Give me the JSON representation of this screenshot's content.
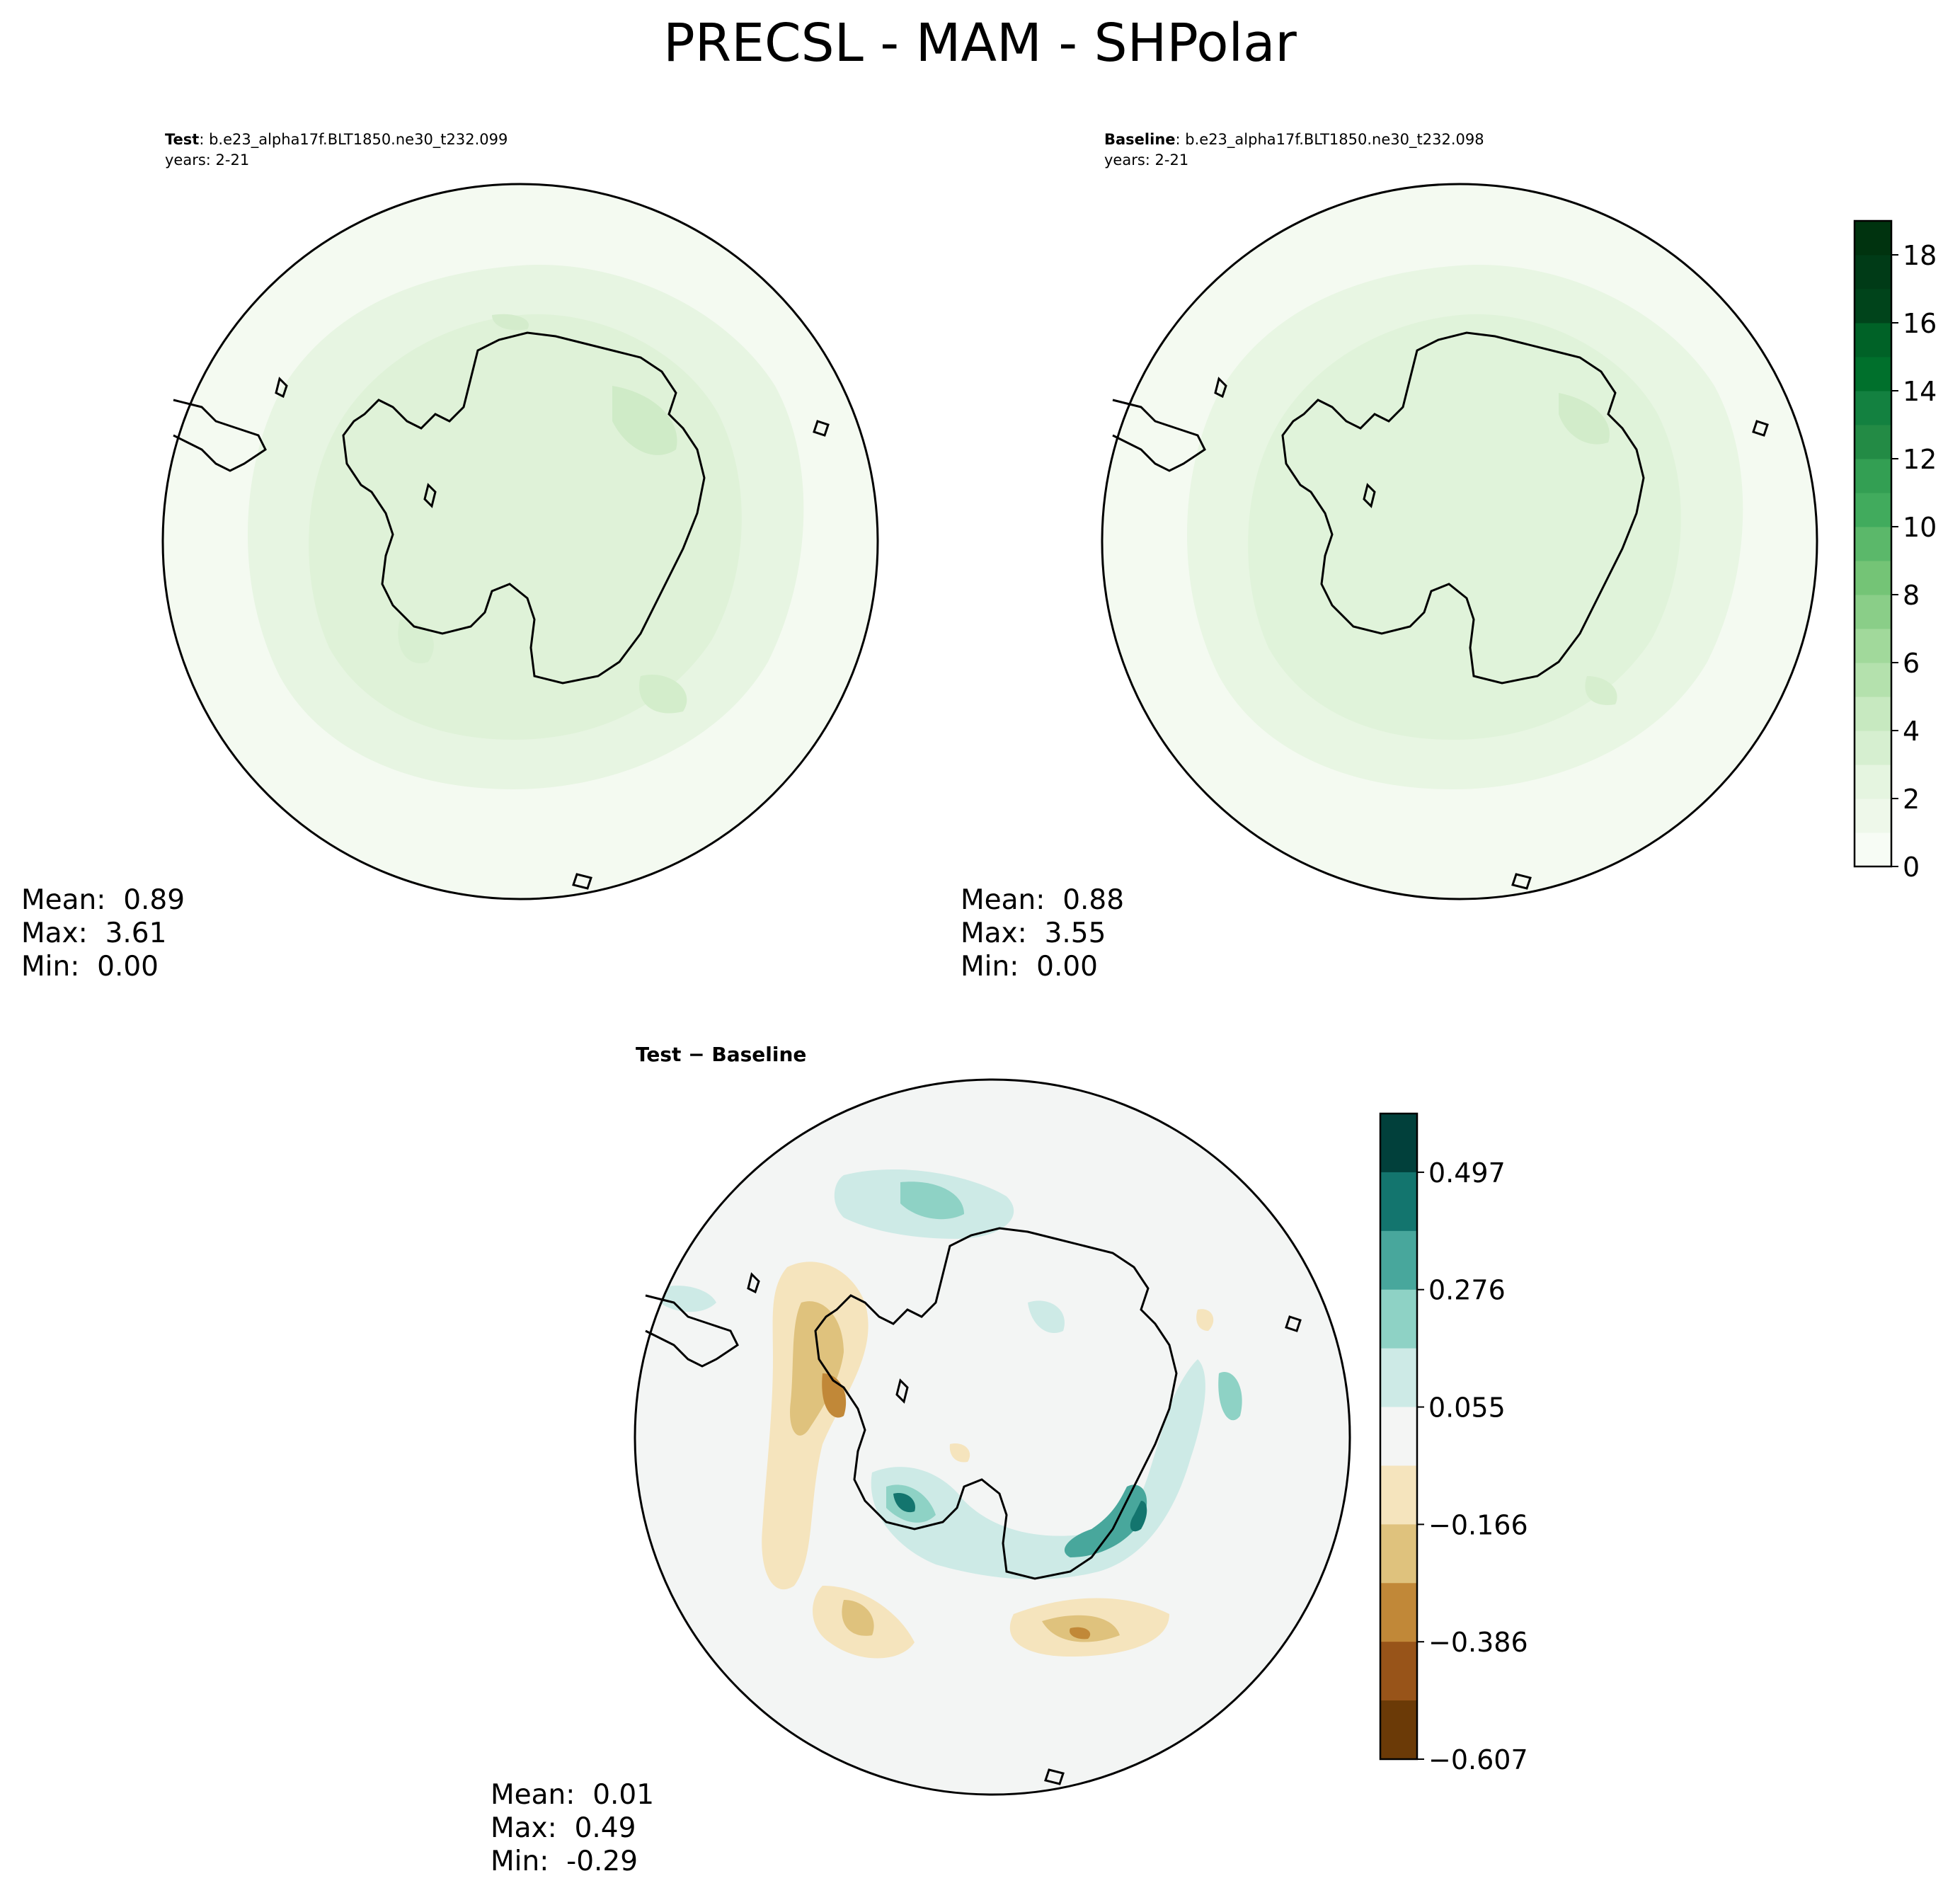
{
  "figure": {
    "title": "PRECSL - MAM - SHPolar"
  },
  "panels": {
    "test": {
      "label": "Test",
      "case": ": b.e23_alpha17f.BLT1850.ne30_t232.099",
      "years": "years: 2-21",
      "stats": {
        "mean_label": "Mean:",
        "mean": "0.89",
        "max_label": "Max:",
        "max": "3.61",
        "min_label": "Min:",
        "min": "0.00"
      }
    },
    "baseline": {
      "label": "Baseline",
      "case": ": b.e23_alpha17f.BLT1850.ne30_t232.098",
      "years": "years: 2-21",
      "stats": {
        "mean_label": "Mean:",
        "mean": "0.88",
        "max_label": "Max:",
        "max": "3.55",
        "min_label": "Min:",
        "min": "0.00"
      }
    },
    "difference": {
      "title": "Test − Baseline",
      "stats": {
        "mean_label": "Mean:",
        "mean": "0.01",
        "max_label": "Max:",
        "max": "0.49",
        "min_label": "Min:",
        "min": "-0.29"
      }
    }
  },
  "colorbars": {
    "main": {
      "ticks": [
        "0",
        "2",
        "4",
        "6",
        "8",
        "10",
        "12",
        "14",
        "16",
        "18"
      ],
      "range": [
        0,
        19
      ],
      "colors": [
        "#f7fcf5",
        "#eef8ea",
        "#e5f5e0",
        "#d6efd0",
        "#c7e9c0",
        "#b4e1ad",
        "#a1d99b",
        "#8ace88",
        "#74c476",
        "#5bb86a",
        "#41ab5d",
        "#339f53",
        "#238b45",
        "#138140",
        "#00702c",
        "#006227",
        "#00441b",
        "#003b17",
        "#00330f"
      ]
    },
    "diff": {
      "ticks": [
        "0.497",
        "0.276",
        "0.055",
        "−0.166",
        "−0.386",
        "−0.607"
      ],
      "colors": [
        "#01403b",
        "#13756e",
        "#48a79c",
        "#8ed2c5",
        "#cdeae6",
        "#f4f5f4",
        "#f5e4bd",
        "#dfc27d",
        "#c18838",
        "#985419",
        "#6b3a07"
      ]
    }
  },
  "colors": {
    "coastline": "#000000",
    "map_background_main": "#f4faf1",
    "map_background_diff": "#f3f5f4"
  }
}
